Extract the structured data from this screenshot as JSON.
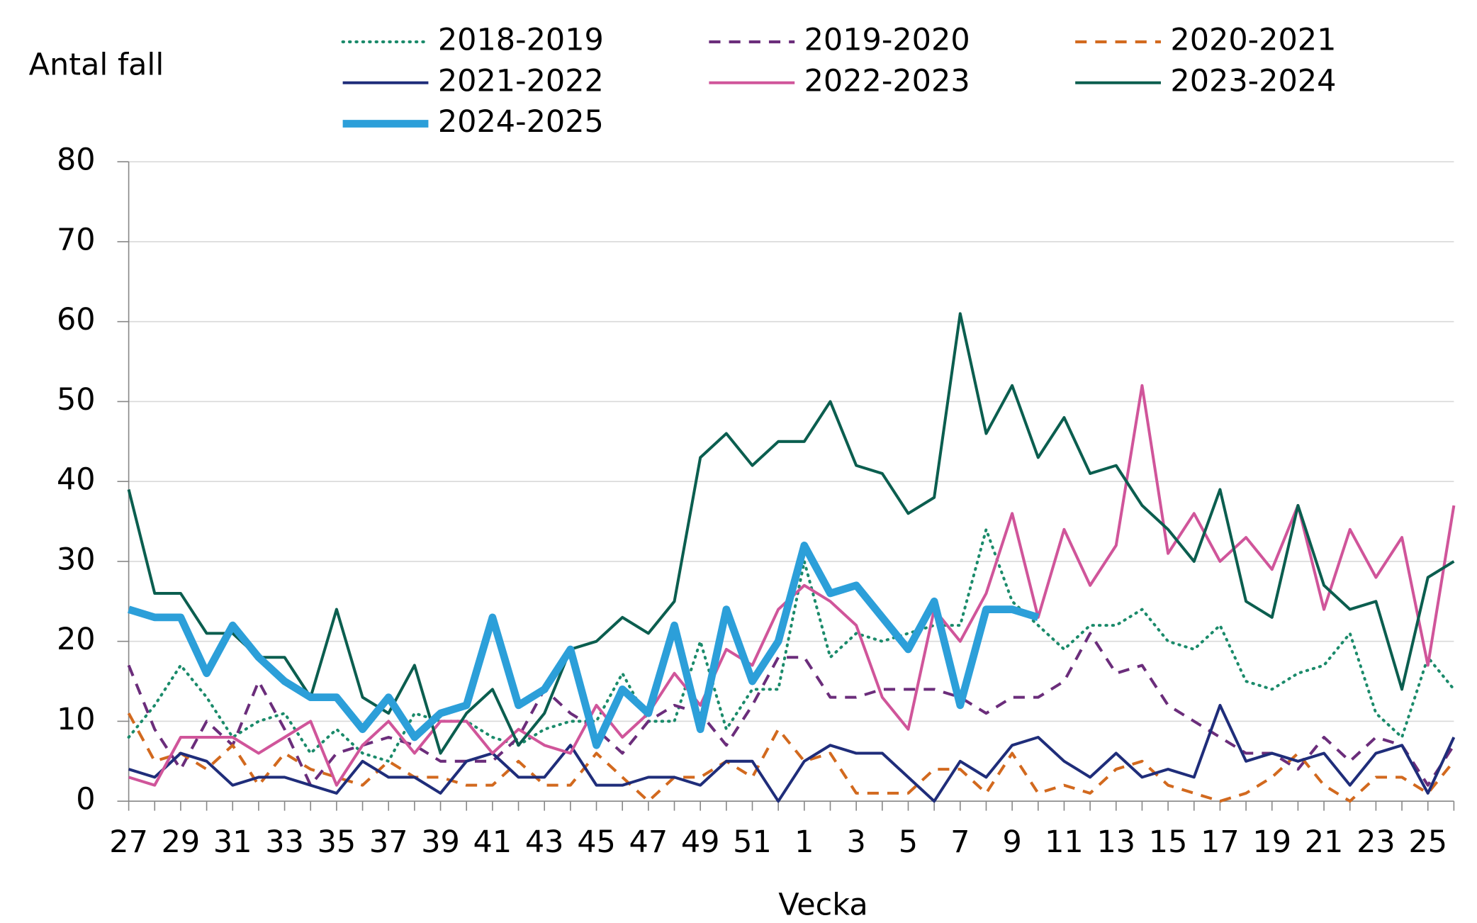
{
  "chart_data": {
    "type": "line",
    "y_label": "Antal fall",
    "x_label": "Vecka",
    "categories": [
      "27",
      null,
      "29",
      null,
      "31",
      null,
      "33",
      null,
      "35",
      null,
      "37",
      null,
      "39",
      null,
      "41",
      null,
      "43",
      null,
      "45",
      null,
      "47",
      null,
      "49",
      null,
      "51",
      null,
      "1",
      null,
      "3",
      null,
      "5",
      null,
      "7",
      null,
      "9",
      null,
      "11",
      null,
      "13",
      null,
      "15",
      null,
      "17",
      null,
      "19",
      null,
      "21",
      null,
      "23",
      null,
      "25",
      null
    ],
    "ylim": [
      0,
      80
    ],
    "yticks": [
      0,
      10,
      20,
      30,
      40,
      50,
      60,
      70,
      80
    ],
    "grid": true,
    "series": [
      {
        "name": "2018-2019",
        "color": "#1a8a6a",
        "dash": "dotted",
        "width": 3,
        "values": [
          8,
          12,
          17,
          13,
          8,
          10,
          11,
          6,
          9,
          6,
          5,
          11,
          10,
          10,
          8,
          7,
          9,
          10,
          10,
          16,
          10,
          10,
          20,
          9,
          14,
          14,
          30,
          18,
          21,
          20,
          21,
          22,
          22,
          34,
          25,
          22,
          19,
          22,
          22,
          24,
          20,
          19,
          22,
          15,
          14,
          16,
          17,
          21,
          11,
          8,
          18,
          14
        ]
      },
      {
        "name": "2019-2020",
        "color": "#6b2d7b",
        "dash": "dashed",
        "width": 3,
        "values": [
          17,
          9,
          4,
          10,
          7,
          15,
          9,
          2,
          6,
          7,
          8,
          7,
          5,
          5,
          5,
          8,
          14,
          11,
          9,
          6,
          10,
          12,
          11,
          7,
          12,
          18,
          18,
          13,
          13,
          14,
          14,
          14,
          13,
          11,
          13,
          13,
          15,
          21,
          16,
          17,
          12,
          10,
          8,
          6,
          6,
          4,
          8,
          5,
          8,
          7,
          2,
          7
        ]
      },
      {
        "name": "2020-2021",
        "color": "#d2691e",
        "dash": "dashed",
        "width": 3,
        "values": [
          11,
          5,
          6,
          4,
          7,
          2,
          6,
          4,
          3,
          2,
          5,
          3,
          3,
          2,
          2,
          5,
          2,
          2,
          6,
          3,
          0,
          3,
          3,
          5,
          3,
          9,
          5,
          6,
          1,
          1,
          1,
          4,
          4,
          1,
          6,
          1,
          2,
          1,
          4,
          5,
          2,
          1,
          0,
          1,
          3,
          6,
          2,
          0,
          3,
          3,
          1,
          5
        ]
      },
      {
        "name": "2021-2022",
        "color": "#1f2d7a",
        "dash": "solid",
        "width": 3,
        "values": [
          4,
          3,
          6,
          5,
          2,
          3,
          3,
          2,
          1,
          5,
          3,
          3,
          1,
          5,
          6,
          3,
          3,
          7,
          2,
          2,
          3,
          3,
          2,
          5,
          5,
          0,
          5,
          7,
          6,
          6,
          3,
          0,
          5,
          3,
          7,
          8,
          5,
          3,
          6,
          3,
          4,
          3,
          12,
          5,
          6,
          5,
          6,
          2,
          6,
          7,
          1,
          8
        ]
      },
      {
        "name": "2022-2023",
        "color": "#d0559a",
        "dash": "solid",
        "width": 3,
        "values": [
          3,
          2,
          8,
          8,
          8,
          6,
          8,
          10,
          2,
          7,
          10,
          6,
          10,
          10,
          6,
          9,
          7,
          6,
          12,
          8,
          11,
          16,
          12,
          19,
          17,
          24,
          27,
          25,
          22,
          13,
          9,
          24,
          20,
          26,
          36,
          23,
          34,
          27,
          32,
          52,
          31,
          36,
          30,
          33,
          29,
          37,
          24,
          34,
          28,
          33,
          17,
          37
        ]
      },
      {
        "name": "2023-2024",
        "color": "#0b5e4f",
        "dash": "solid",
        "width": 3,
        "values": [
          39,
          26,
          26,
          21,
          21,
          18,
          18,
          13,
          24,
          13,
          11,
          17,
          6,
          11,
          14,
          7,
          11,
          19,
          20,
          23,
          21,
          25,
          43,
          46,
          42,
          45,
          45,
          50,
          42,
          41,
          36,
          38,
          61,
          46,
          52,
          43,
          48,
          41,
          42,
          37,
          34,
          30,
          39,
          25,
          23,
          37,
          27,
          24,
          25,
          14,
          28,
          30
        ]
      },
      {
        "name": "2024-2025",
        "color": "#2c9fd9",
        "dash": "solid",
        "width": 8,
        "values": [
          24,
          23,
          23,
          16,
          22,
          18,
          15,
          13,
          13,
          9,
          13,
          8,
          11,
          12,
          23,
          12,
          14,
          19,
          7,
          14,
          11,
          22,
          9,
          24,
          15,
          20,
          32,
          26,
          27,
          23,
          19,
          25,
          12,
          24,
          24,
          23,
          null,
          null,
          null,
          null,
          null,
          null,
          null,
          null,
          null,
          null,
          null,
          null,
          null,
          null,
          null,
          null
        ]
      }
    ]
  }
}
